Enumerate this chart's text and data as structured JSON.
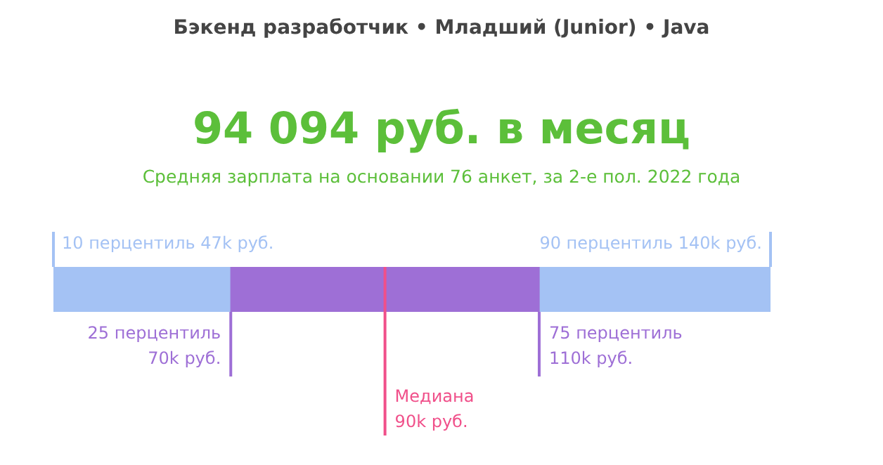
{
  "chart_data": {
    "type": "other",
    "title": "94 094 руб. в месяц",
    "subtitle": "Средняя зарплата на основании 76 анкет, за 2-е пол. 2022 года",
    "categories": [
      "10 перцентиль",
      "25 перцентиль",
      "Медиана",
      "75 перцентиль",
      "90 перцентиль"
    ],
    "values": [
      47,
      70,
      90,
      110,
      140
    ],
    "value_labels": [
      "47k руб.",
      "70k руб.",
      "90k руб.",
      "110k руб.",
      "140k руб."
    ],
    "colors": [
      "#a4c2f4",
      "#9e6fd6",
      "#f0508a",
      "#9e6fd6",
      "#a4c2f4"
    ],
    "annotations": [
      "Бэкенд разработчик • Младший (Junior) • Java"
    ]
  }
}
